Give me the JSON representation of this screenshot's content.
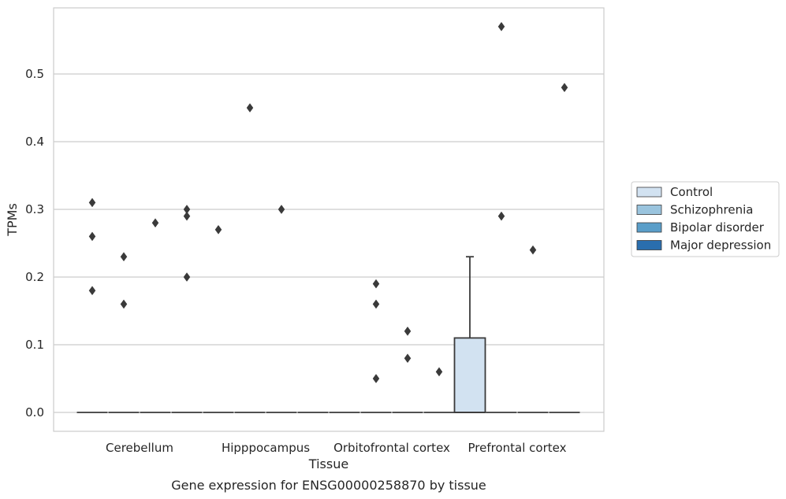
{
  "chart_data": {
    "type": "box",
    "title": "Gene expression for ENSG00000258870 by tissue",
    "xlabel": "Tissue",
    "ylabel": "TPMs",
    "categories": [
      "Cerebellum",
      "Hipppocampus",
      "Orbitofrontal cortex",
      "Prefrontal cortex"
    ],
    "ylim": [
      -0.03,
      0.595
    ],
    "yticks": [
      "0.0",
      "0.1",
      "0.2",
      "0.3",
      "0.4",
      "0.5"
    ],
    "grid": true,
    "legend_placement": "right",
    "series": [
      {
        "name": "Control",
        "color": "#d2e2f1",
        "boxes": [
          {
            "category": "Cerebellum",
            "q1": 0,
            "median": 0,
            "q3": 0,
            "whisker_low": 0,
            "whisker_high": 0,
            "outliers": [
              0.31,
              0.26,
              0.18
            ]
          },
          {
            "category": "Hipppocampus",
            "q1": 0,
            "median": 0,
            "q3": 0,
            "whisker_low": 0,
            "whisker_high": 0,
            "outliers": [
              0.27
            ]
          },
          {
            "category": "Orbitofrontal cortex",
            "q1": 0,
            "median": 0,
            "q3": 0,
            "whisker_low": 0,
            "whisker_high": 0,
            "outliers": []
          },
          {
            "category": "Prefrontal cortex",
            "q1": 0,
            "median": 0,
            "q3": 0.11,
            "whisker_low": 0,
            "whisker_high": 0.23,
            "outliers": []
          }
        ]
      },
      {
        "name": "Schizophrenia",
        "color": "#9ac4de",
        "boxes": [
          {
            "category": "Cerebellum",
            "q1": 0,
            "median": 0,
            "q3": 0,
            "whisker_low": 0,
            "whisker_high": 0,
            "outliers": [
              0.23,
              0.16
            ]
          },
          {
            "category": "Hipppocampus",
            "q1": 0,
            "median": 0,
            "q3": 0,
            "whisker_low": 0,
            "whisker_high": 0,
            "outliers": [
              0.45
            ]
          },
          {
            "category": "Orbitofrontal cortex",
            "q1": 0,
            "median": 0,
            "q3": 0,
            "whisker_low": 0,
            "whisker_high": 0,
            "outliers": [
              0.19,
              0.16
            ]
          },
          {
            "category": "Prefrontal cortex",
            "q1": 0,
            "median": 0,
            "q3": 0,
            "whisker_low": 0,
            "whisker_high": 0,
            "outliers": [
              0.57,
              0.29
            ]
          }
        ]
      },
      {
        "name": "Bipolar disorder",
        "color": "#5a9ec9",
        "boxes": [
          {
            "category": "Cerebellum",
            "q1": 0,
            "median": 0,
            "q3": 0,
            "whisker_low": 0,
            "whisker_high": 0,
            "outliers": [
              0.28
            ]
          },
          {
            "category": "Hipppocampus",
            "q1": 0,
            "median": 0,
            "q3": 0,
            "whisker_low": 0,
            "whisker_high": 0,
            "outliers": [
              0.3
            ]
          },
          {
            "category": "Orbitofrontal cortex",
            "q1": 0,
            "median": 0,
            "q3": 0,
            "whisker_low": 0,
            "whisker_high": 0,
            "outliers": [
              0.12,
              0.08
            ]
          },
          {
            "category": "Prefrontal cortex",
            "q1": 0,
            "median": 0,
            "q3": 0,
            "whisker_low": 0,
            "whisker_high": 0,
            "outliers": [
              0.24
            ]
          }
        ]
      },
      {
        "name": "Major depression",
        "color": "#2a6eae",
        "boxes": [
          {
            "category": "Cerebellum",
            "q1": 0,
            "median": 0,
            "q3": 0,
            "whisker_low": 0,
            "whisker_high": 0,
            "outliers": [
              0.3,
              0.29,
              0.2
            ]
          },
          {
            "category": "Hipppocampus",
            "q1": 0,
            "median": 0,
            "q3": 0,
            "whisker_low": 0,
            "whisker_high": 0,
            "outliers": []
          },
          {
            "category": "Orbitofrontal cortex",
            "q1": 0,
            "median": 0,
            "q3": 0,
            "whisker_low": 0,
            "whisker_high": 0,
            "outliers": [
              0.06
            ]
          },
          {
            "category": "Prefrontal cortex",
            "q1": 0,
            "median": 0,
            "q3": 0,
            "whisker_low": 0,
            "whisker_high": 0,
            "outliers": [
              0.48
            ]
          }
        ]
      }
    ],
    "extra_outliers": [
      {
        "category": "Orbitofrontal cortex",
        "series": "Schizophrenia",
        "value": 0.05
      }
    ]
  },
  "colors": {
    "grid": "#cccccc",
    "frame": "#cccccc",
    "box_edge": "#3a3a3a",
    "outlier": "#3a3a3a",
    "text": "#262626"
  }
}
